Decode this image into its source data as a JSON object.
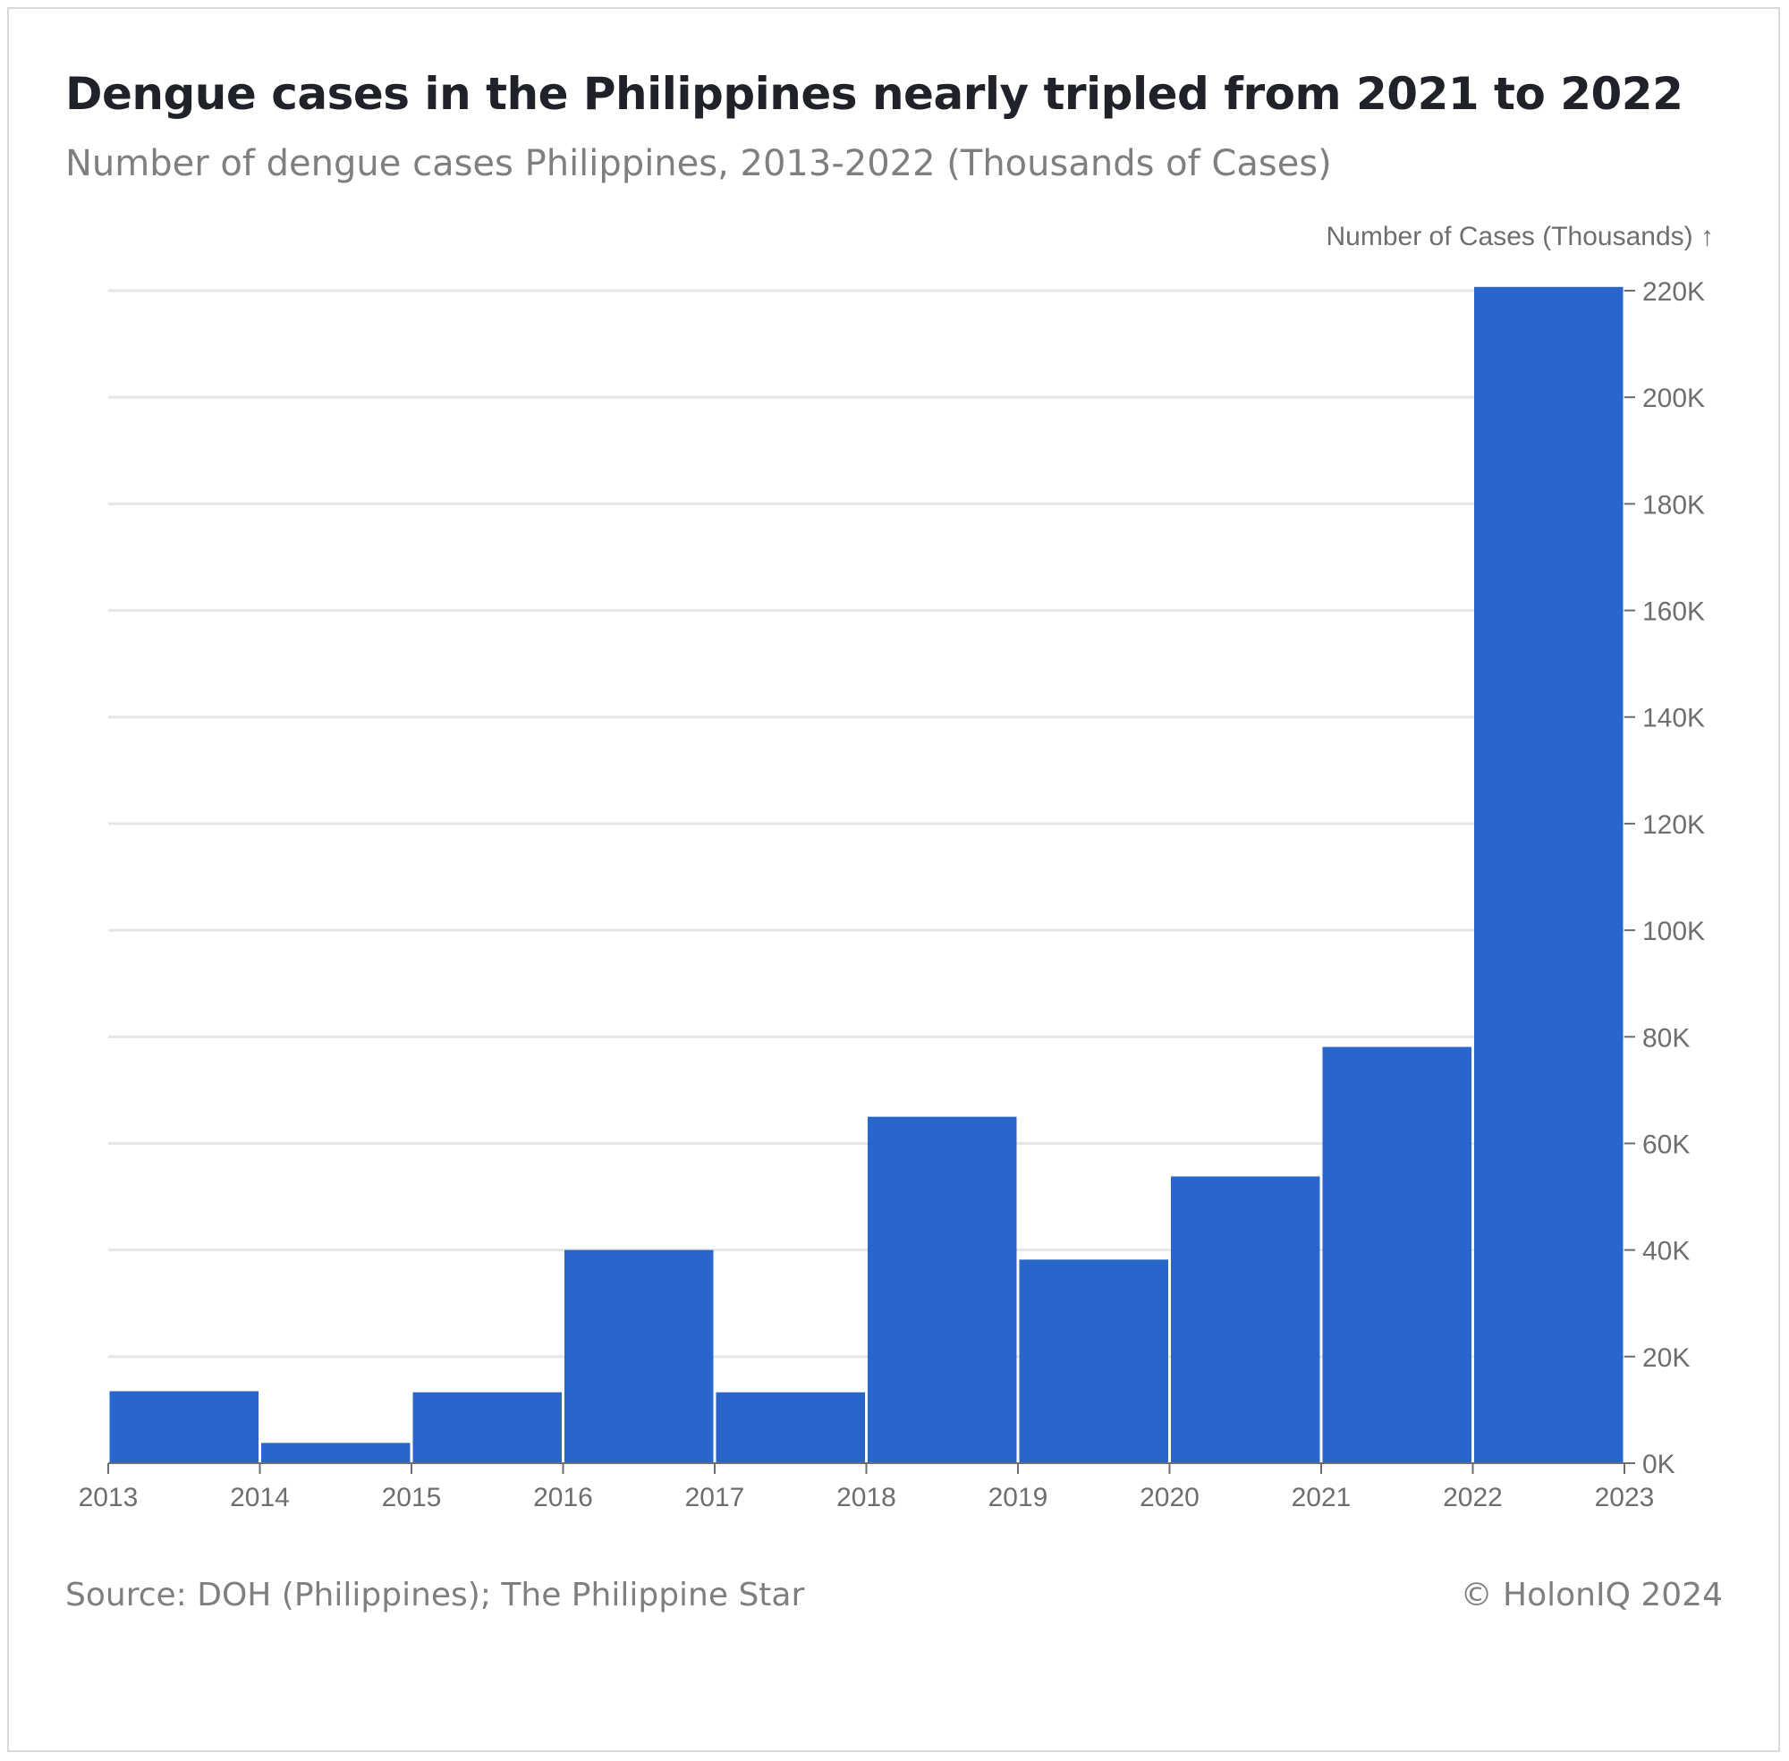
{
  "header": {
    "title": "Dengue cases in the Philippines nearly tripled from 2021 to 2022",
    "subtitle": "Number of dengue cases Philippines, 2013-2022 (Thousands of Cases)"
  },
  "footer": {
    "source": "Source: DOH (Philippines); The Philippine Star",
    "copyright": "© HolonIQ 2024"
  },
  "colors": {
    "bar": "#2966cc",
    "grid": "#e6e6e6",
    "axis": "#6e6e6e"
  },
  "chart_data": {
    "type": "bar",
    "title": "Dengue cases in the Philippines nearly tripled from 2021 to 2022",
    "subtitle": "Number of dengue cases Philippines, 2013-2022 (Thousands of Cases)",
    "ylabel": "Number of Cases (Thousands) ↑",
    "xlabel": "",
    "x_ticks": [
      "2013",
      "2014",
      "2015",
      "2016",
      "2017",
      "2018",
      "2019",
      "2020",
      "2021",
      "2022",
      "2023"
    ],
    "y_ticks": [
      "0K",
      "20K",
      "40K",
      "60K",
      "80K",
      "100K",
      "120K",
      "140K",
      "160K",
      "180K",
      "200K",
      "220K"
    ],
    "bins": [
      {
        "start": 2013,
        "end": 2014,
        "value": 13.5
      },
      {
        "start": 2014,
        "end": 2015,
        "value": 3.8
      },
      {
        "start": 2015,
        "end": 2016,
        "value": 13.3
      },
      {
        "start": 2016,
        "end": 2017,
        "value": 40.0
      },
      {
        "start": 2017,
        "end": 2018,
        "value": 13.3
      },
      {
        "start": 2018,
        "end": 2019,
        "value": 65.0
      },
      {
        "start": 2019,
        "end": 2020,
        "value": 38.2
      },
      {
        "start": 2020,
        "end": 2021,
        "value": 53.8
      },
      {
        "start": 2021,
        "end": 2022,
        "value": 78.1
      },
      {
        "start": 2022,
        "end": 2023,
        "value": 220.7
      }
    ],
    "xlim": [
      2013,
      2023
    ],
    "ylim": [
      0,
      220
    ],
    "grid": true,
    "y_axis_position": "right",
    "legend": "none"
  }
}
